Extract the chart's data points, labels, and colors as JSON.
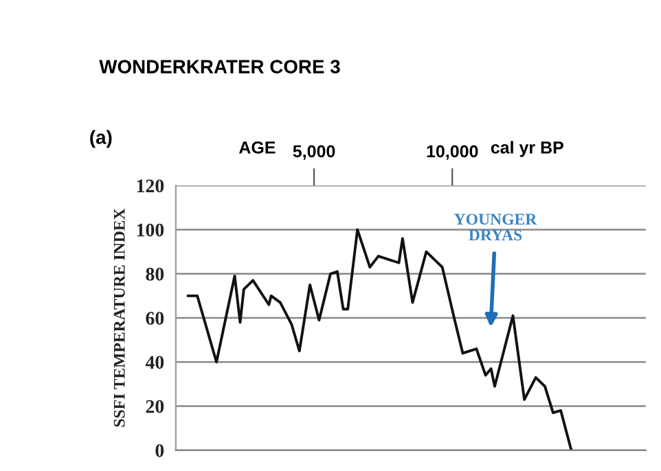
{
  "chart_data": {
    "type": "line",
    "title": "WONDERKRATER CORE 3",
    "xlabel": "AGE",
    "ylabel": "SSFI TEMPERATURE INDEX",
    "xlim": [
      0,
      17000
    ],
    "xticks": [
      {
        "value": 5000,
        "label": "5,000"
      },
      {
        "value": 10000,
        "label": "10,000"
      }
    ],
    "ylim": [
      0,
      120
    ],
    "yticks": [
      0,
      20,
      40,
      60,
      80,
      100,
      120
    ],
    "grid": "y",
    "series": [
      {
        "color": "#111111",
        "x": [
          446,
          777,
          1470,
          2128,
          2327,
          2459,
          2790,
          3366,
          3448,
          3778,
          4190,
          4470,
          4851,
          5182,
          5594,
          5841,
          6055,
          6220,
          6570,
          7020,
          7326,
          8069,
          8201,
          8564,
          9059,
          9638,
          10049,
          10379,
          10874,
          11204,
          11402,
          11534,
          12194,
          12607,
          13019,
          13349,
          13646,
          13924,
          14306
        ],
        "values": [
          70,
          70,
          40,
          79,
          58,
          73,
          77,
          66,
          70,
          67,
          57,
          45,
          75,
          59,
          80,
          81,
          64,
          64,
          100,
          83,
          88,
          85,
          96,
          67,
          90,
          83,
          61,
          44,
          46,
          34,
          37,
          29,
          61,
          23,
          33,
          29,
          17,
          18,
          0
        ]
      }
    ],
    "annotations": [
      "(a)",
      "cal yr BP",
      "YOUNGER\nDRYAS"
    ]
  }
}
